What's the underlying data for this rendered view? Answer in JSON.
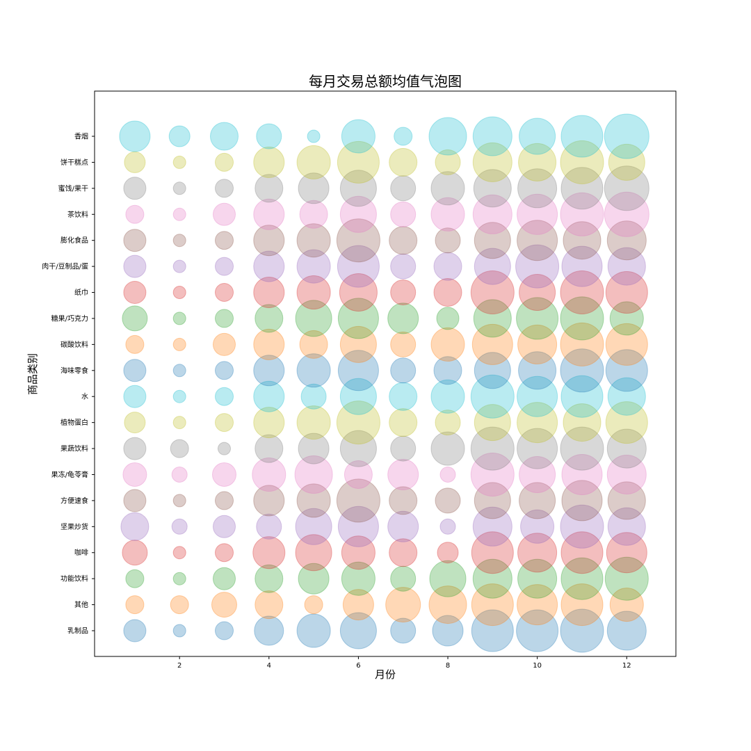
{
  "chart_data": {
    "type": "scatter",
    "title": "每月交易总额均值气泡图",
    "xlabel": "月份",
    "ylabel": "商品类别",
    "xlim": [
      0.1,
      13.1
    ],
    "x_ticks": [
      2,
      4,
      6,
      8,
      10,
      12
    ],
    "x": [
      1,
      2,
      3,
      4,
      5,
      6,
      7,
      8,
      9,
      10,
      11,
      12
    ],
    "categories": [
      "乳制品",
      "其他",
      "功能饮料",
      "咖啡",
      "坚果炒货",
      "方便速食",
      "果冻/龟苓膏",
      "果蔬饮料",
      "植物蛋白",
      "水",
      "海味零食",
      "碳酸饮料",
      "糖果/巧克力",
      "纸巾",
      "肉干/豆制品/蛋",
      "膨化食品",
      "茶饮料",
      "蜜饯/果干",
      "饼干糕点",
      "香烟"
    ],
    "legend": "none",
    "grid": false,
    "series": [
      {
        "colour": "#1f77b4",
        "radius": [
          16,
          9,
          13,
          21,
          24,
          26,
          18,
          22,
          30,
          30,
          31,
          28
        ]
      },
      {
        "colour": "#ff7f0e",
        "radius": [
          13,
          13,
          18,
          20,
          13,
          22,
          25,
          27,
          30,
          29,
          30,
          24
        ]
      },
      {
        "colour": "#2ca02c",
        "radius": [
          13,
          9,
          16,
          20,
          22,
          24,
          18,
          26,
          28,
          28,
          30,
          31
        ]
      },
      {
        "colour": "#d62728",
        "radius": [
          18,
          9,
          13,
          23,
          26,
          24,
          20,
          15,
          30,
          28,
          30,
          29
        ]
      },
      {
        "colour": "#9467bd",
        "radius": [
          20,
          11,
          16,
          18,
          26,
          29,
          22,
          11,
          28,
          24,
          31,
          27
        ]
      },
      {
        "colour": "#8c564b",
        "radius": [
          16,
          9,
          13,
          22,
          24,
          31,
          20,
          18,
          26,
          26,
          29,
          27
        ]
      },
      {
        "colour": "#e377c2",
        "radius": [
          17,
          11,
          17,
          24,
          27,
          20,
          22,
          11,
          31,
          26,
          29,
          28
        ]
      },
      {
        "colour": "#7f7f7f",
        "radius": [
          16,
          13,
          9,
          20,
          22,
          26,
          18,
          24,
          31,
          29,
          31,
          28
        ]
      },
      {
        "colour": "#bcbd22",
        "radius": [
          15,
          9,
          13,
          22,
          24,
          31,
          20,
          18,
          26,
          29,
          27,
          30
        ]
      },
      {
        "colour": "#17becf",
        "radius": [
          16,
          9,
          13,
          22,
          18,
          26,
          20,
          24,
          31,
          29,
          30,
          27
        ]
      },
      {
        "colour": "#1f77b4",
        "radius": [
          16,
          9,
          13,
          22,
          24,
          29,
          18,
          20,
          26,
          27,
          31,
          30
        ]
      },
      {
        "colour": "#ff7f0e",
        "radius": [
          13,
          9,
          16,
          22,
          20,
          26,
          18,
          24,
          29,
          28,
          31,
          30
        ]
      },
      {
        "colour": "#2ca02c",
        "radius": [
          18,
          9,
          13,
          20,
          26,
          29,
          22,
          16,
          27,
          30,
          31,
          24
        ]
      },
      {
        "colour": "#d62728",
        "radius": [
          16,
          9,
          13,
          22,
          24,
          27,
          18,
          20,
          31,
          26,
          31,
          30
        ]
      },
      {
        "colour": "#9467bd",
        "radius": [
          16,
          9,
          13,
          22,
          24,
          30,
          18,
          20,
          26,
          31,
          29,
          27
        ]
      },
      {
        "colour": "#8c564b",
        "radius": [
          16,
          9,
          13,
          22,
          24,
          31,
          20,
          18,
          26,
          29,
          27,
          28
        ]
      },
      {
        "colour": "#e377c2",
        "radius": [
          13,
          9,
          16,
          22,
          20,
          26,
          18,
          24,
          28,
          29,
          31,
          32
        ]
      },
      {
        "colour": "#7f7f7f",
        "radius": [
          16,
          9,
          13,
          20,
          22,
          26,
          18,
          24,
          27,
          28,
          30,
          32
        ]
      },
      {
        "colour": "#bcbd22",
        "radius": [
          15,
          9,
          13,
          22,
          24,
          30,
          20,
          18,
          28,
          27,
          31,
          26
        ]
      },
      {
        "colour": "#17becf",
        "radius": [
          22,
          15,
          20,
          18,
          9,
          24,
          13,
          27,
          28,
          26,
          30,
          32
        ]
      }
    ]
  }
}
